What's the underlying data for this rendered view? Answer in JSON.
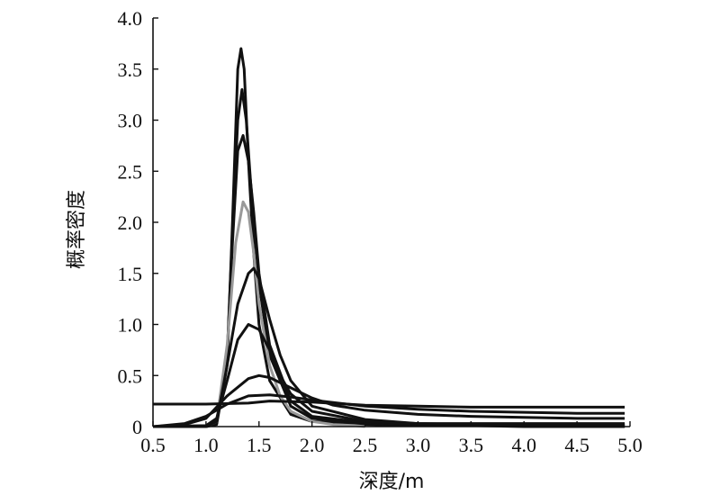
{
  "chart_data": {
    "type": "line",
    "xlabel": "深度/m",
    "ylabel": "概率密度",
    "xlim": [
      0.5,
      5.0
    ],
    "ylim": [
      0,
      4.0
    ],
    "xticks": [
      "0.5",
      "1.0",
      "1.5",
      "2.0",
      "2.5",
      "3.0",
      "3.5",
      "4.0",
      "4.5",
      "5.0"
    ],
    "yticks": [
      "0",
      "0.5",
      "1.0",
      "1.5",
      "2.0",
      "2.5",
      "3.0",
      "3.5",
      "4.0"
    ],
    "grid": false,
    "series": [
      {
        "color": "#111111",
        "x": [
          0.5,
          1.0,
          1.1,
          1.2,
          1.25,
          1.3,
          1.33,
          1.36,
          1.4,
          1.45,
          1.5,
          1.6,
          1.8,
          2.0,
          2.5,
          3.0,
          3.5,
          4.0,
          4.5,
          4.95
        ],
        "y": [
          0,
          0,
          0.02,
          0.6,
          2.0,
          3.5,
          3.7,
          3.5,
          2.6,
          1.7,
          1.0,
          0.45,
          0.12,
          0.05,
          0.02,
          0.01,
          0.01,
          0.0,
          0.0,
          0.0
        ]
      },
      {
        "color": "#111111",
        "x": [
          0.5,
          1.0,
          1.1,
          1.2,
          1.25,
          1.3,
          1.34,
          1.38,
          1.42,
          1.5,
          1.6,
          1.8,
          2.0,
          2.5,
          3.0,
          3.5,
          4.0,
          4.5,
          4.95
        ],
        "y": [
          0,
          0,
          0.03,
          0.7,
          1.9,
          3.0,
          3.3,
          3.0,
          2.4,
          1.4,
          0.7,
          0.2,
          0.08,
          0.03,
          0.02,
          0.01,
          0.01,
          0.0,
          0.0
        ]
      },
      {
        "color": "#111111",
        "x": [
          0.5,
          1.0,
          1.1,
          1.2,
          1.25,
          1.3,
          1.35,
          1.4,
          1.45,
          1.5,
          1.6,
          1.8,
          2.0,
          2.5,
          3.0,
          3.5,
          4.0,
          4.5,
          4.95
        ],
        "y": [
          0,
          0,
          0.03,
          0.7,
          1.8,
          2.7,
          2.85,
          2.6,
          2.1,
          1.5,
          0.8,
          0.25,
          0.1,
          0.04,
          0.02,
          0.01,
          0.01,
          0.01,
          0.01
        ]
      },
      {
        "color": "#999999",
        "x": [
          0.5,
          1.0,
          1.1,
          1.2,
          1.28,
          1.35,
          1.4,
          1.45,
          1.5,
          1.6,
          1.7,
          1.8,
          2.0,
          2.2,
          2.4,
          2.5
        ],
        "y": [
          0,
          0,
          0.05,
          0.8,
          1.8,
          2.2,
          2.1,
          1.7,
          1.2,
          0.6,
          0.3,
          0.15,
          0.05,
          0.02,
          0.01,
          0.0
        ]
      },
      {
        "color": "#111111",
        "x": [
          0.5,
          1.0,
          1.1,
          1.2,
          1.3,
          1.4,
          1.45,
          1.5,
          1.6,
          1.7,
          1.8,
          2.0,
          2.5,
          3.0,
          3.5,
          4.0,
          4.5,
          4.95
        ],
        "y": [
          0,
          0,
          0.05,
          0.6,
          1.2,
          1.5,
          1.55,
          1.45,
          1.05,
          0.7,
          0.45,
          0.2,
          0.07,
          0.03,
          0.02,
          0.02,
          0.02,
          0.02
        ]
      },
      {
        "color": "#111111",
        "x": [
          0.5,
          1.0,
          1.1,
          1.2,
          1.3,
          1.4,
          1.5,
          1.6,
          1.7,
          1.8,
          2.0,
          2.5,
          3.0,
          3.5,
          4.0,
          4.5,
          4.95
        ],
        "y": [
          0,
          0.01,
          0.08,
          0.45,
          0.85,
          1.0,
          0.95,
          0.75,
          0.5,
          0.32,
          0.15,
          0.05,
          0.03,
          0.03,
          0.03,
          0.03,
          0.03
        ]
      },
      {
        "color": "#111111",
        "x": [
          0.5,
          0.8,
          1.0,
          1.2,
          1.4,
          1.5,
          1.6,
          1.8,
          2.0,
          2.2,
          2.5,
          3.0,
          3.5,
          4.0,
          4.5,
          4.95
        ],
        "y": [
          0,
          0.02,
          0.08,
          0.3,
          0.47,
          0.5,
          0.48,
          0.38,
          0.28,
          0.21,
          0.16,
          0.12,
          0.1,
          0.09,
          0.08,
          0.08
        ]
      },
      {
        "color": "#111111",
        "x": [
          0.5,
          0.8,
          1.0,
          1.2,
          1.4,
          1.6,
          1.8,
          2.0,
          2.5,
          3.0,
          3.5,
          4.0,
          4.5,
          4.95
        ],
        "y": [
          0,
          0.03,
          0.1,
          0.22,
          0.3,
          0.31,
          0.29,
          0.26,
          0.2,
          0.17,
          0.15,
          0.14,
          0.13,
          0.13
        ]
      },
      {
        "color": "#111111",
        "x": [
          0.5,
          1.0,
          1.4,
          1.6,
          2.0,
          2.5,
          3.0,
          3.5,
          4.0,
          4.5,
          4.95
        ],
        "y": [
          0.22,
          0.22,
          0.23,
          0.25,
          0.24,
          0.21,
          0.2,
          0.19,
          0.19,
          0.19,
          0.19
        ]
      }
    ]
  }
}
